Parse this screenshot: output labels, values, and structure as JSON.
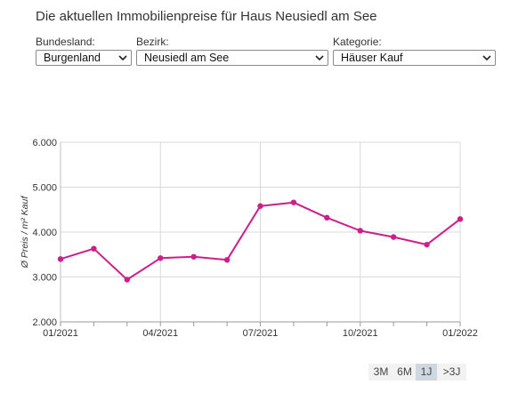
{
  "header": {
    "title": "Die aktuellen Immobilienpreise für Haus Neusiedl am See"
  },
  "filters": {
    "bundesland": {
      "label": "Bundesland:",
      "value": "Burgenland"
    },
    "bezirk": {
      "label": "Bezirk:",
      "value": "Neusiedl am See"
    },
    "kategorie": {
      "label": "Kategorie:",
      "value": "Häuser Kauf"
    }
  },
  "range_buttons": {
    "items": [
      "3M",
      "6M",
      "1J",
      ">3J"
    ],
    "active": "1J"
  },
  "colors": {
    "line": "#cc1f8a",
    "grid": "#d9d9d9",
    "axis": "#bfbfbf",
    "active_range": "#cfd8e0"
  },
  "chart_data": {
    "type": "line",
    "ylabel": "Ø Preis / m² Kauf",
    "ylim": [
      2000,
      6000
    ],
    "y_ticks": [
      "2.000",
      "3.000",
      "4.000",
      "5.000",
      "6.000"
    ],
    "x_ticks": [
      "01/2021",
      "04/2021",
      "07/2021",
      "10/2021",
      "01/2022"
    ],
    "grid": true,
    "series": [
      {
        "x": [
          "2021-01",
          "2021-02",
          "2021-03",
          "2021-04",
          "2021-05",
          "2021-06",
          "2021-07",
          "2021-08",
          "2021-09",
          "2021-10",
          "2021-11",
          "2021-12",
          "2022-01"
        ],
        "values": [
          3400,
          3630,
          2940,
          3420,
          3450,
          3380,
          4580,
          4660,
          4320,
          4030,
          3890,
          3720,
          4290
        ]
      }
    ]
  }
}
